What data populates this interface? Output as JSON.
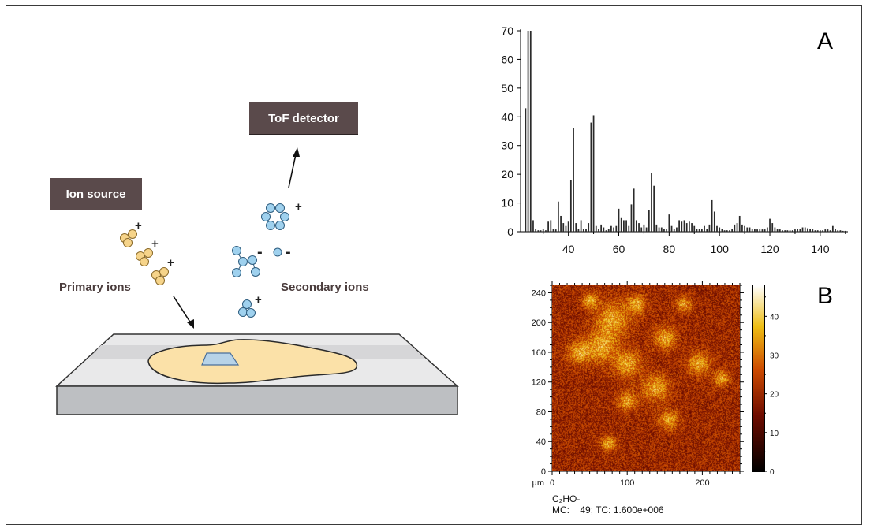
{
  "diagram": {
    "tof_detector_label": "ToF detector",
    "ion_source_label": "Ion source",
    "primary_ions_label": "Primary ions",
    "secondary_ions_label": "Secondary ions",
    "charges": {
      "plus": "+",
      "minus": "-"
    },
    "colors": {
      "primary_ion": "#f6d48a",
      "secondary_ion": "#9fd1ee",
      "box": "#5a4a4b",
      "sample": "#fbe1a8"
    }
  },
  "panel_a": {
    "letter": "A"
  },
  "panel_b": {
    "letter": "B"
  },
  "chart_data": [
    {
      "type": "bar",
      "title": "",
      "xlabel": "",
      "ylabel": "",
      "xlim": [
        21,
        151
      ],
      "ylim": [
        0,
        70
      ],
      "xticks": [
        40,
        60,
        80,
        100,
        120,
        140
      ],
      "yticks": [
        0,
        10,
        20,
        30,
        40,
        50,
        60,
        70
      ],
      "x": [
        23,
        24,
        25,
        26,
        27,
        28,
        29,
        30,
        31,
        32,
        33,
        34,
        35,
        36,
        37,
        38,
        39,
        40,
        41,
        42,
        43,
        44,
        45,
        46,
        47,
        48,
        49,
        50,
        51,
        52,
        53,
        54,
        55,
        56,
        57,
        58,
        59,
        60,
        61,
        62,
        63,
        64,
        65,
        66,
        67,
        68,
        69,
        70,
        71,
        72,
        73,
        74,
        75,
        76,
        77,
        78,
        79,
        80,
        81,
        82,
        83,
        84,
        85,
        86,
        87,
        88,
        89,
        90,
        91,
        92,
        93,
        94,
        95,
        96,
        97,
        98,
        99,
        100,
        101,
        102,
        103,
        104,
        105,
        106,
        107,
        108,
        109,
        110,
        111,
        112,
        113,
        114,
        115,
        116,
        117,
        118,
        119,
        120,
        121,
        122,
        123,
        124,
        125,
        126,
        127,
        128,
        129,
        130,
        131,
        132,
        133,
        134,
        135,
        136,
        137,
        138,
        139,
        140,
        141,
        142,
        143,
        144,
        145,
        146,
        147,
        148,
        149,
        150
      ],
      "values": [
        43,
        70,
        70,
        4,
        1,
        0.5,
        0.5,
        1,
        0.5,
        3.5,
        4,
        1,
        0.8,
        10.5,
        5.5,
        3,
        2,
        3.5,
        18,
        36,
        3,
        1,
        4,
        1,
        1,
        3,
        38,
        40.5,
        2,
        1,
        2.5,
        1.5,
        0.5,
        1,
        2,
        1.5,
        2,
        8,
        5,
        4,
        4,
        2,
        9.5,
        15,
        4,
        3,
        1.5,
        2.5,
        1.5,
        7.5,
        20.5,
        16,
        2.5,
        1.5,
        1.5,
        1,
        1,
        6,
        2,
        1,
        1.5,
        4,
        3.5,
        4,
        3,
        3.5,
        3,
        2,
        1,
        1,
        1,
        2,
        1,
        2.5,
        11,
        7,
        2,
        1.5,
        1,
        0.5,
        0.5,
        0.5,
        1,
        2.5,
        3,
        5.5,
        2.5,
        2,
        1.5,
        1.5,
        1,
        1,
        0.8,
        0.8,
        0.8,
        0.8,
        1.5,
        4.5,
        3,
        1.5,
        1,
        0.8,
        0.5,
        0.5,
        0.5,
        0.5,
        0.5,
        0.8,
        1,
        1,
        1.5,
        1.5,
        1.2,
        1,
        0.8,
        0.5,
        0.5,
        0.5,
        0.5,
        0.8,
        0.8,
        0.5,
        2,
        1,
        0.5,
        0.5,
        0.3,
        0.3
      ]
    },
    {
      "type": "heatmap",
      "title": "",
      "xlabel": "µm",
      "ylabel": "",
      "xlim": [
        0,
        250
      ],
      "ylim": [
        0,
        250
      ],
      "xticks": [
        0,
        100,
        200
      ],
      "yticks": [
        0,
        40,
        80,
        120,
        160,
        200,
        240
      ],
      "colorbar": {
        "range": [
          0,
          48
        ],
        "ticks": [
          0,
          10,
          20,
          30,
          40
        ],
        "colormap": "black-red-yellow-white"
      },
      "caption": {
        "ion": "C₂HO-",
        "mc_label": "MC:",
        "mc_value": "49",
        "tc_label": "TC:",
        "tc_value": "1.600e+006"
      }
    }
  ]
}
